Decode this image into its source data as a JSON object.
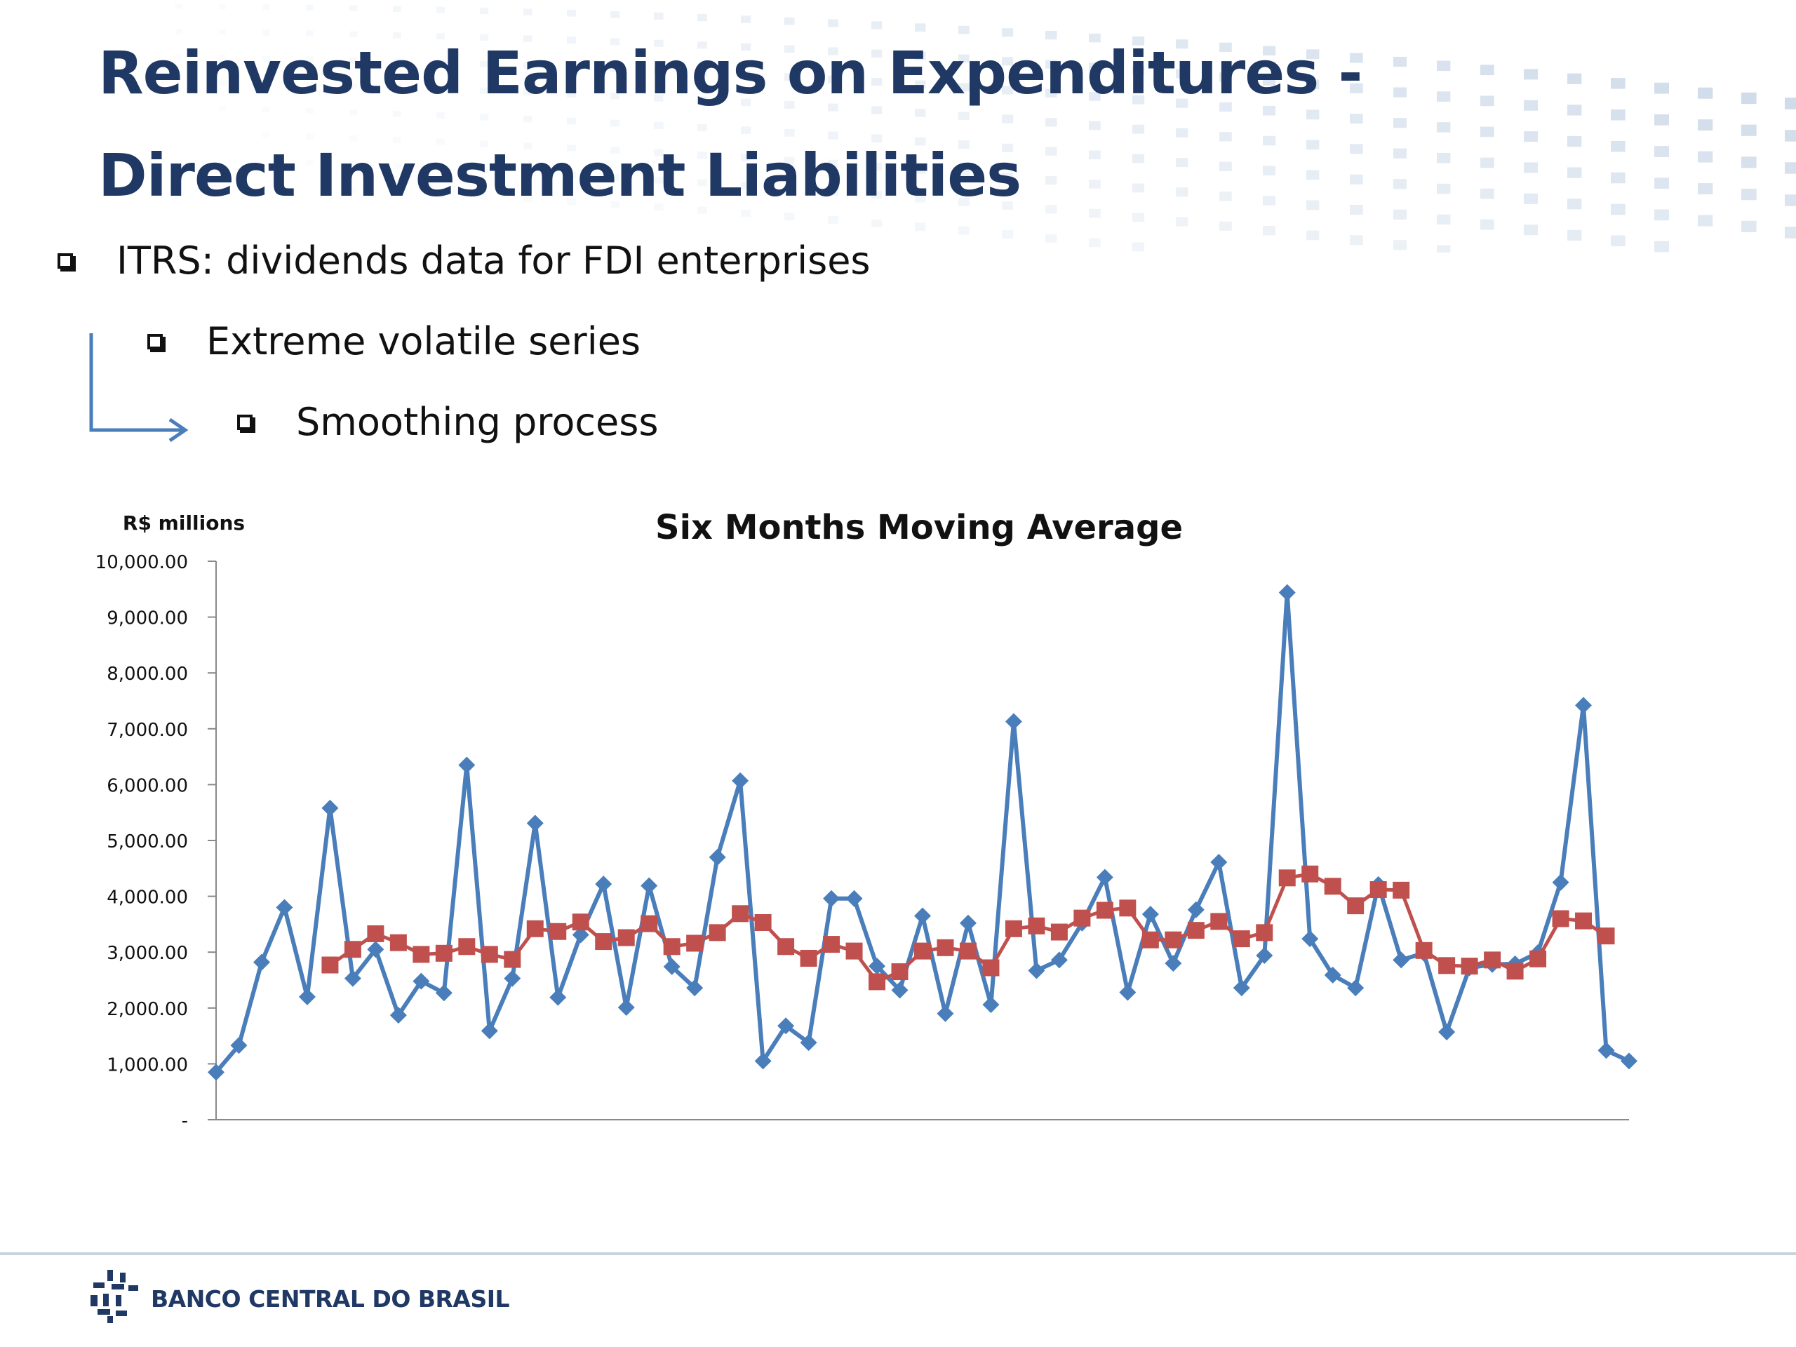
{
  "slide": {
    "title_line1": "Reinvested Earnings on Expenditures -",
    "title_line2": "Direct Investment Liabilities",
    "bullets": [
      "ITRS: dividends data for FDI enterprises",
      "Extreme volatile series",
      "Smoothing process"
    ],
    "footer_brand": "BANCO CENTRAL DO BRASIL"
  },
  "colors": {
    "title": "#1f3864",
    "series_raw": "#4a7ebb",
    "series_avg": "#c0504d",
    "arrow": "#4a7ebb"
  },
  "icons": [
    "square-bullet-icon",
    "bent-arrow-icon",
    "banco-central-logo-icon"
  ],
  "chart_data": {
    "type": "line",
    "title": "Six Months Moving Average",
    "ylabel": "R$ millions",
    "xlabel": "",
    "ylim": [
      0,
      10000
    ],
    "y_ticks": [
      0,
      1000,
      2000,
      3000,
      4000,
      5000,
      6000,
      7000,
      8000,
      9000,
      10000
    ],
    "y_tick_labels": [
      "-",
      "1,000.00",
      "2,000.00",
      "3,000.00",
      "4,000.00",
      "5,000.00",
      "6,000.00",
      "7,000.00",
      "8,000.00",
      "9,000.00",
      "10,000.00"
    ],
    "legend": "none",
    "grid": false,
    "x": [
      1,
      2,
      3,
      4,
      5,
      6,
      7,
      8,
      9,
      10,
      11,
      12,
      13,
      14,
      15,
      16,
      17,
      18,
      19,
      20,
      21,
      22,
      23,
      24,
      25,
      26,
      27,
      28,
      29,
      30,
      31,
      32,
      33,
      34,
      35,
      36,
      37,
      38,
      39,
      40,
      41,
      42,
      43,
      44,
      45,
      46,
      47,
      48,
      49,
      50,
      51,
      52,
      53,
      54,
      55,
      56,
      57,
      58,
      59,
      60,
      61,
      62,
      63
    ],
    "series": [
      {
        "marker": "diamond",
        "color": "#4a7ebb",
        "values": [
          850,
          1330,
          2820,
          3800,
          2200,
          5580,
          2530,
          3050,
          1870,
          2480,
          2270,
          6350,
          1590,
          2530,
          5310,
          2190,
          3310,
          4220,
          2010,
          4190,
          2740,
          2360,
          4700,
          6070,
          1050,
          1680,
          1380,
          3960,
          3960,
          2750,
          2320,
          3650,
          1900,
          3520,
          2060,
          7130,
          2670,
          2860,
          3520,
          4340,
          2280,
          3680,
          2800,
          3760,
          4610,
          2360,
          2940,
          9440,
          3240,
          2590,
          2360,
          4210,
          2860,
          2980,
          1570,
          2720,
          2780,
          2790,
          2990,
          4250,
          7420,
          1240,
          1050
        ]
      },
      {
        "marker": "square",
        "color": "#c0504d",
        "values": [
          null,
          null,
          null,
          null,
          null,
          2770,
          3050,
          3330,
          3170,
          2960,
          2980,
          3100,
          2960,
          2870,
          3420,
          3370,
          3540,
          3190,
          3260,
          3510,
          3100,
          3160,
          3350,
          3690,
          3530,
          3100,
          2890,
          3140,
          3020,
          2470,
          2650,
          3020,
          3080,
          3020,
          2720,
          3420,
          3470,
          3360,
          3610,
          3750,
          3790,
          3220,
          3220,
          3390,
          3550,
          3240,
          3350,
          4330,
          4400,
          4180,
          3830,
          4120,
          4110,
          3030,
          2760,
          2750,
          2860,
          2660,
          2880,
          3600,
          3560,
          3290,
          null
        ]
      }
    ]
  }
}
